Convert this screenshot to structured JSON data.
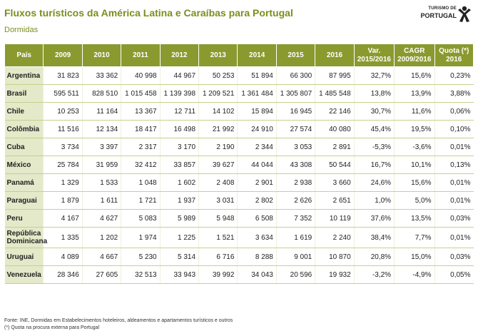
{
  "header": {
    "title": "Fluxos turísticos da América Latina e Caraíbas para Portugal",
    "subtitle": "Dormidas"
  },
  "logo": {
    "line1": "TURISMO DE",
    "line2": "PORTUGAL"
  },
  "table": {
    "columns": [
      "País",
      "2009",
      "2010",
      "2011",
      "2012",
      "2013",
      "2014",
      "2015",
      "2016",
      "Var.\n2015/2016",
      "CAGR\n2009/2016",
      "Quota (*)\n2016"
    ],
    "rows": [
      [
        "Argentina",
        "31 823",
        "33 362",
        "40 998",
        "44 967",
        "50 253",
        "51 894",
        "66 300",
        "87 995",
        "32,7%",
        "15,6%",
        "0,23%"
      ],
      [
        "Brasil",
        "595 511",
        "828 510",
        "1 015 458",
        "1 139 398",
        "1 209 521",
        "1 361 484",
        "1 305 807",
        "1 485 548",
        "13,8%",
        "13,9%",
        "3,88%"
      ],
      [
        "Chile",
        "10 253",
        "11 164",
        "13 367",
        "12 711",
        "14 102",
        "15 894",
        "16 945",
        "22 146",
        "30,7%",
        "11,6%",
        "0,06%"
      ],
      [
        "Colômbia",
        "11 516",
        "12 134",
        "18 417",
        "16 498",
        "21 992",
        "24 910",
        "27 574",
        "40 080",
        "45,4%",
        "19,5%",
        "0,10%"
      ],
      [
        "Cuba",
        "3 734",
        "3 397",
        "2 317",
        "3 170",
        "2 190",
        "2 344",
        "3 053",
        "2 891",
        "-5,3%",
        "-3,6%",
        "0,01%"
      ],
      [
        "México",
        "25 784",
        "31 959",
        "32 412",
        "33 857",
        "39 627",
        "44 044",
        "43 308",
        "50 544",
        "16,7%",
        "10,1%",
        "0,13%"
      ],
      [
        "Panamá",
        "1 329",
        "1 533",
        "1 048",
        "1 602",
        "2 408",
        "2 901",
        "2 938",
        "3 660",
        "24,6%",
        "15,6%",
        "0,01%"
      ],
      [
        "Paraguai",
        "1 879",
        "1 611",
        "1 721",
        "1 937",
        "3 031",
        "2 802",
        "2 626",
        "2 651",
        "1,0%",
        "5,0%",
        "0,01%"
      ],
      [
        "Peru",
        "4 167",
        "4 627",
        "5 083",
        "5 989",
        "5 948",
        "6 508",
        "7 352",
        "10 119",
        "37,6%",
        "13,5%",
        "0,03%"
      ],
      [
        "República Dominicana",
        "1 335",
        "1 202",
        "1 974",
        "1 225",
        "1 521",
        "3 634",
        "1 619",
        "2 240",
        "38,4%",
        "7,7%",
        "0,01%"
      ],
      [
        "Uruguai",
        "4 089",
        "4 667",
        "5 230",
        "5 314",
        "6 716",
        "8 288",
        "9 001",
        "10 870",
        "20,8%",
        "15,0%",
        "0,03%"
      ],
      [
        "Venezuela",
        "28 346",
        "27 605",
        "32 513",
        "33 943",
        "39 992",
        "34 043",
        "20 596",
        "19 932",
        "-3,2%",
        "-4,9%",
        "0,05%"
      ]
    ]
  },
  "footer": {
    "source": "Fonte: INE, Dormidas em Estabelecimentos hoteleiros, aldeamentos e apartamentos turísticos e outros",
    "note": "(*) Quota na procura externa para Portugal"
  },
  "colors": {
    "accent": "#7a8e1e",
    "header_bg": "#8a9a2e",
    "first_col_bg": "#e4e9c9"
  }
}
